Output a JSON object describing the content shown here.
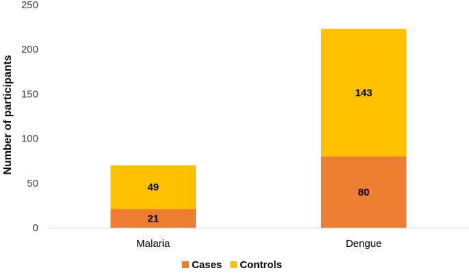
{
  "chart_data": {
    "type": "bar",
    "stacked": true,
    "categories": [
      "Malaria",
      "Dengue"
    ],
    "series": [
      {
        "name": "Cases",
        "values": [
          21,
          80
        ],
        "color": "#ED7D31"
      },
      {
        "name": "Controls",
        "values": [
          49,
          143
        ],
        "color": "#FFC000"
      }
    ],
    "title": "",
    "xlabel": "",
    "ylabel": "Number of participants",
    "ylim": [
      0,
      250
    ],
    "yticks": [
      0,
      50,
      100,
      150,
      200,
      250
    ],
    "grid": false,
    "legend": "bottom",
    "data_labels": true
  }
}
